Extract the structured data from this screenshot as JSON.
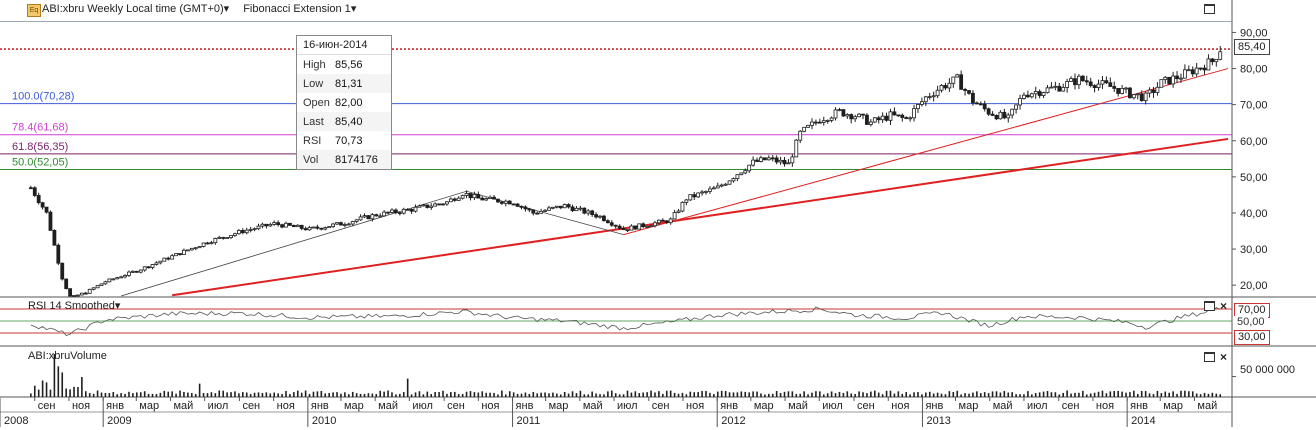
{
  "header": {
    "symbol_label": "ABI:xbru Weekly Local time (GMT+0)",
    "symbol_caret": "▾",
    "study_label": "Fibonacci Extension 1",
    "study_caret": "▾",
    "icon_text": "Eq"
  },
  "tooltip": {
    "date": "16-июн-2014",
    "rows": [
      {
        "k": "High",
        "v": "85,56"
      },
      {
        "k": "Low",
        "v": "81,31"
      },
      {
        "k": "Open",
        "v": "82,00"
      },
      {
        "k": "Last",
        "v": "85,40"
      },
      {
        "k": "RSI",
        "v": "70,73"
      },
      {
        "k": "Vol",
        "v": "8174176"
      }
    ]
  },
  "rsi_pane": {
    "label": "RSI 14 Smoothed",
    "caret": "▾",
    "upper_tag": "70,00",
    "lower_tag": "30,00",
    "mid_tick": "50,00"
  },
  "volume_pane": {
    "label": "ABI:xbruVolume",
    "tick": "50 000 000"
  },
  "price_tag": "85,40",
  "colors": {
    "up": "#1f1f1f",
    "down": "#1f1f1f",
    "fib100": "#3b5bd6",
    "fib78": "#d23fd2",
    "fib61": "#7a1f6a",
    "fib50": "#2f8a2f",
    "trend": "#e02020",
    "last_line": "#cc0000"
  },
  "chart_data": {
    "type": "candlestick",
    "y_axis": {
      "min": 17,
      "max": 94,
      "ticks": [
        20,
        30,
        40,
        50,
        60,
        70,
        80,
        90
      ],
      "tick_labels": [
        "20,00",
        "30,00",
        "40,00",
        "50,00",
        "60,00",
        "70,00",
        "80,00",
        "90,00"
      ]
    },
    "fib_levels": [
      {
        "label": "100.0(70,28)",
        "value": 70.28,
        "color": "#3b5bd6"
      },
      {
        "label": "78.4(61,68)",
        "value": 61.68,
        "color": "#d23fd2"
      },
      {
        "label": "61.8(56,35)",
        "value": 56.35,
        "color": "#7a1f6a"
      },
      {
        "label": "50.0(52,05)",
        "value": 52.05,
        "color": "#2f8a2f"
      }
    ],
    "last_price": 85.4,
    "top_line_value": 93.0,
    "weekly_close_anchors": [
      [
        "2008-08-25",
        47
      ],
      [
        "2008-09-22",
        40
      ],
      [
        "2008-10-20",
        22
      ],
      [
        "2008-11-03",
        16.5
      ],
      [
        "2008-12-01",
        18
      ],
      [
        "2009-01-05",
        21
      ],
      [
        "2009-03-02",
        24
      ],
      [
        "2009-05-04",
        28
      ],
      [
        "2009-07-06",
        32
      ],
      [
        "2009-09-07",
        35
      ],
      [
        "2009-11-02",
        37
      ],
      [
        "2010-01-04",
        35.5
      ],
      [
        "2010-03-01",
        37
      ],
      [
        "2010-05-03",
        39.5
      ],
      [
        "2010-07-05",
        41
      ],
      [
        "2010-09-06",
        43
      ],
      [
        "2010-10-04",
        45.5
      ],
      [
        "2010-11-01",
        44
      ],
      [
        "2011-01-03",
        43
      ],
      [
        "2011-02-07",
        40
      ],
      [
        "2011-04-04",
        42
      ],
      [
        "2011-06-06",
        39
      ],
      [
        "2011-07-18",
        35.5
      ],
      [
        "2011-09-05",
        37
      ],
      [
        "2011-10-10",
        38
      ],
      [
        "2011-11-07",
        44
      ],
      [
        "2012-01-02",
        47
      ],
      [
        "2012-03-05",
        54
      ],
      [
        "2012-04-02",
        55
      ],
      [
        "2012-05-07",
        53.5
      ],
      [
        "2012-05-28",
        62
      ],
      [
        "2012-07-02",
        66
      ],
      [
        "2012-08-06",
        68
      ],
      [
        "2012-09-03",
        67
      ],
      [
        "2012-10-01",
        65
      ],
      [
        "2012-11-05",
        67
      ],
      [
        "2012-12-03",
        66
      ],
      [
        "2013-01-07",
        72
      ],
      [
        "2013-02-04",
        75
      ],
      [
        "2013-03-04",
        77
      ],
      [
        "2013-04-01",
        71
      ],
      [
        "2013-04-29",
        68
      ],
      [
        "2013-06-03",
        66
      ],
      [
        "2013-07-01",
        73
      ],
      [
        "2013-08-05",
        74
      ],
      [
        "2013-09-02",
        75
      ],
      [
        "2013-10-07",
        77
      ],
      [
        "2013-11-04",
        76
      ],
      [
        "2013-12-02",
        75
      ],
      [
        "2014-01-06",
        73
      ],
      [
        "2014-02-03",
        72
      ],
      [
        "2014-03-03",
        76
      ],
      [
        "2014-04-07",
        78
      ],
      [
        "2014-05-05",
        80
      ],
      [
        "2014-06-02",
        82
      ],
      [
        "2014-06-16",
        85.4
      ]
    ],
    "rsi_anchors": [
      [
        "2008-08-25",
        45
      ],
      [
        "2008-10-20",
        30
      ],
      [
        "2008-11-03",
        28
      ],
      [
        "2009-01-05",
        52
      ],
      [
        "2009-05-04",
        62
      ],
      [
        "2009-09-07",
        63
      ],
      [
        "2010-01-04",
        56
      ],
      [
        "2010-06-07",
        58
      ],
      [
        "2010-10-04",
        66
      ],
      [
        "2011-01-03",
        55
      ],
      [
        "2011-04-04",
        50
      ],
      [
        "2011-07-18",
        38
      ],
      [
        "2011-10-10",
        48
      ],
      [
        "2012-01-02",
        60
      ],
      [
        "2012-05-28",
        68
      ],
      [
        "2012-07-02",
        70
      ],
      [
        "2012-09-03",
        60
      ],
      [
        "2012-12-03",
        55
      ],
      [
        "2013-02-04",
        64
      ],
      [
        "2013-04-29",
        42
      ],
      [
        "2013-07-01",
        58
      ],
      [
        "2013-10-07",
        56
      ],
      [
        "2014-01-06",
        47
      ],
      [
        "2014-02-03",
        40
      ],
      [
        "2014-04-07",
        56
      ],
      [
        "2014-06-16",
        70.7
      ]
    ],
    "fib_extension_points": [
      [
        "2009-02-02",
        17
      ],
      [
        "2010-10-11",
        46
      ],
      [
        "2011-07-18",
        34
      ]
    ],
    "trendlines": [
      {
        "from": [
          "2009-05-04",
          17.2
        ],
        "to": [
          "2014-06-30",
          60.5
        ],
        "width": 2
      },
      {
        "from": [
          "2011-07-18",
          34
        ],
        "to": [
          "2014-06-30",
          80
        ],
        "width": 1
      }
    ],
    "x_axis": {
      "months": [
        {
          "label": "сен",
          "date": "2008-09-01"
        },
        {
          "label": "ноя",
          "date": "2008-11-01"
        },
        {
          "label": "янв",
          "date": "2009-01-01"
        },
        {
          "label": "мар",
          "date": "2009-03-01"
        },
        {
          "label": "май",
          "date": "2009-05-01"
        },
        {
          "label": "июл",
          "date": "2009-07-01"
        },
        {
          "label": "сен",
          "date": "2009-09-01"
        },
        {
          "label": "ноя",
          "date": "2009-11-01"
        },
        {
          "label": "янв",
          "date": "2010-01-01"
        },
        {
          "label": "мар",
          "date": "2010-03-01"
        },
        {
          "label": "май",
          "date": "2010-05-01"
        },
        {
          "label": "июл",
          "date": "2010-07-01"
        },
        {
          "label": "сен",
          "date": "2010-09-01"
        },
        {
          "label": "ноя",
          "date": "2010-11-01"
        },
        {
          "label": "янв",
          "date": "2011-01-01"
        },
        {
          "label": "мар",
          "date": "2011-03-01"
        },
        {
          "label": "май",
          "date": "2011-05-01"
        },
        {
          "label": "июл",
          "date": "2011-07-01"
        },
        {
          "label": "сен",
          "date": "2011-09-01"
        },
        {
          "label": "ноя",
          "date": "2011-11-01"
        },
        {
          "label": "янв",
          "date": "2012-01-01"
        },
        {
          "label": "мар",
          "date": "2012-03-01"
        },
        {
          "label": "май",
          "date": "2012-05-01"
        },
        {
          "label": "июл",
          "date": "2012-07-01"
        },
        {
          "label": "сен",
          "date": "2012-09-01"
        },
        {
          "label": "ноя",
          "date": "2012-11-01"
        },
        {
          "label": "янв",
          "date": "2013-01-01"
        },
        {
          "label": "мар",
          "date": "2013-03-01"
        },
        {
          "label": "май",
          "date": "2013-05-01"
        },
        {
          "label": "июл",
          "date": "2013-07-01"
        },
        {
          "label": "сен",
          "date": "2013-09-01"
        },
        {
          "label": "ноя",
          "date": "2013-11-01"
        },
        {
          "label": "янв",
          "date": "2014-01-01"
        },
        {
          "label": "мар",
          "date": "2014-03-01"
        },
        {
          "label": "май",
          "date": "2014-05-01"
        }
      ],
      "years": [
        {
          "label": "2008",
          "date": "2008-07-01"
        },
        {
          "label": "2009",
          "date": "2009-01-01"
        },
        {
          "label": "2010",
          "date": "2010-01-01"
        },
        {
          "label": "2011",
          "date": "2011-01-01"
        },
        {
          "label": "2012",
          "date": "2012-01-01"
        },
        {
          "label": "2013",
          "date": "2013-01-01"
        },
        {
          "label": "2014",
          "date": "2014-01-01"
        }
      ]
    }
  }
}
